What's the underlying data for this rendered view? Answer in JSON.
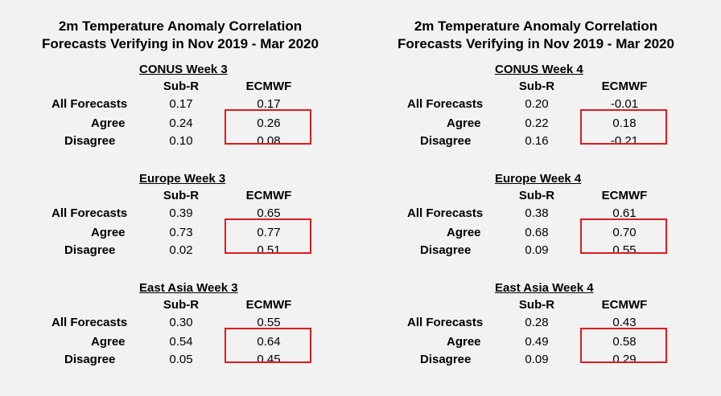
{
  "left": {
    "title_line1": "2m Temperature Anomaly Correlation",
    "title_line2": "Forecasts Verifying in Nov 2019 - Mar 2020",
    "blocks": [
      {
        "title": "CONUS Week 3",
        "col1": "Sub-R",
        "col2": "ECMWF",
        "rows": [
          {
            "label": "All Forecasts",
            "v1": "0.17",
            "v2": "0.17"
          },
          {
            "label": "Agree",
            "v1": "0.24",
            "v2": "0.26"
          },
          {
            "label": "Disagree",
            "v1": "0.10",
            "v2": "0.08"
          }
        ]
      },
      {
        "title": "Europe Week 3",
        "col1": "Sub-R",
        "col2": "ECMWF",
        "rows": [
          {
            "label": "All Forecasts",
            "v1": "0.39",
            "v2": "0.65"
          },
          {
            "label": "Agree",
            "v1": "0.73",
            "v2": "0.77"
          },
          {
            "label": "Disagree",
            "v1": "0.02",
            "v2": "0.51"
          }
        ]
      },
      {
        "title": "East Asia Week 3",
        "col1": "Sub-R",
        "col2": "ECMWF",
        "rows": [
          {
            "label": "All Forecasts",
            "v1": "0.30",
            "v2": "0.55"
          },
          {
            "label": "Agree",
            "v1": "0.54",
            "v2": "0.64"
          },
          {
            "label": "Disagree",
            "v1": "0.05",
            "v2": "0.45"
          }
        ]
      }
    ]
  },
  "right": {
    "title_line1": "2m Temperature Anomaly Correlation",
    "title_line2": "Forecasts Verifying in Nov 2019 - Mar 2020",
    "blocks": [
      {
        "title": "CONUS Week 4",
        "col1": "Sub-R",
        "col2": "ECMWF",
        "rows": [
          {
            "label": "All Forecasts",
            "v1": "0.20",
            "v2": "-0.01"
          },
          {
            "label": "Agree",
            "v1": "0.22",
            "v2": "0.18"
          },
          {
            "label": "Disagree",
            "v1": "0.16",
            "v2": "-0.21"
          }
        ]
      },
      {
        "title": "Europe Week 4",
        "col1": "Sub-R",
        "col2": "ECMWF",
        "rows": [
          {
            "label": "All Forecasts",
            "v1": "0.38",
            "v2": "0.61"
          },
          {
            "label": "Agree",
            "v1": "0.68",
            "v2": "0.70"
          },
          {
            "label": "Disagree",
            "v1": "0.09",
            "v2": "0.55"
          }
        ]
      },
      {
        "title": "East Asia Week 4",
        "col1": "Sub-R",
        "col2": "ECMWF",
        "rows": [
          {
            "label": "All Forecasts",
            "v1": "0.28",
            "v2": "0.43"
          },
          {
            "label": "Agree",
            "v1": "0.49",
            "v2": "0.58"
          },
          {
            "label": "Disagree",
            "v1": "0.09",
            "v2": "0.29"
          }
        ]
      }
    ]
  },
  "highlight_color": "#e0191e"
}
